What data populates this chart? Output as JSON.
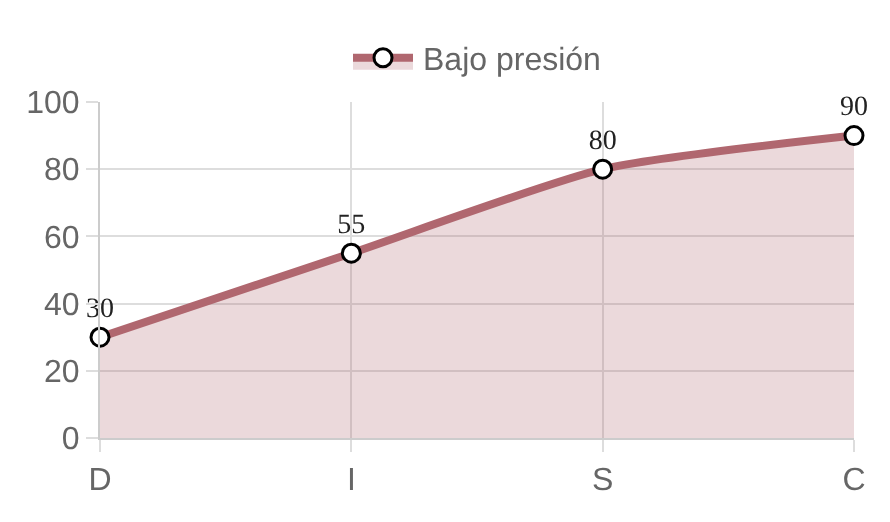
{
  "chart_data": {
    "type": "area",
    "categories": [
      "D",
      "I",
      "S",
      "C"
    ],
    "series": [
      {
        "name": "Bajo presión",
        "color": "#b0676f",
        "values": [
          30,
          55,
          80,
          90
        ]
      }
    ],
    "ylim": [
      0,
      100
    ],
    "yticks": [
      0,
      20,
      40,
      60,
      80,
      100
    ],
    "grid": true,
    "legend": "top",
    "marker": "circle",
    "data_labels": true
  }
}
